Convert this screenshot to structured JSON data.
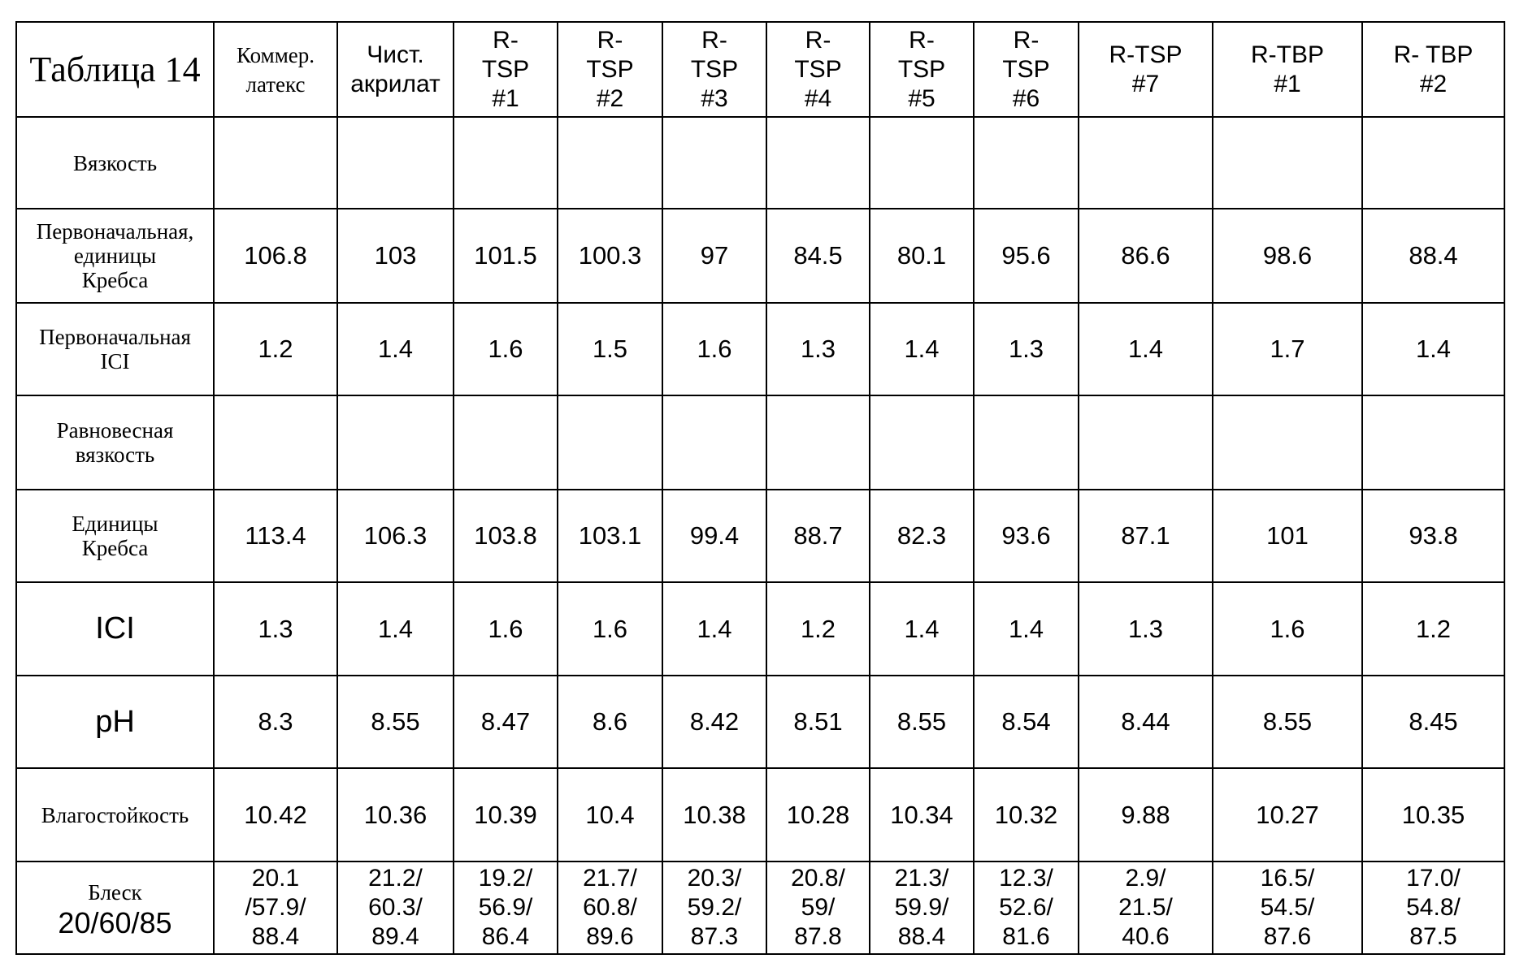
{
  "table": {
    "caption": "Таблица 14",
    "columns": [
      "Коммер.\nлатекс",
      "Чист.\nакрилат",
      "R-\nTSP\n#1",
      "R-\nTSP\n#2",
      "R-\nTSP\n#3",
      "R-\nTSP\n#4",
      "R-\nTSP\n#5",
      "R-\nTSP\n#6",
      "R-TSP\n#7",
      "R-TBP\n#1",
      "R- TBP\n#2"
    ],
    "rows": [
      {
        "label": "Вязкость",
        "values": []
      },
      {
        "label": "Первоначальная,\nединицы\nКребса",
        "values": [
          "106.8",
          "103",
          "101.5",
          "100.3",
          "97",
          "84.5",
          "80.1",
          "95.6",
          "86.6",
          "98.6",
          "88.4"
        ]
      },
      {
        "label": "Первоначальная\nICI",
        "values": [
          "1.2",
          "1.4",
          "1.6",
          "1.5",
          "1.6",
          "1.3",
          "1.4",
          "1.3",
          "1.4",
          "1.7",
          "1.4"
        ]
      },
      {
        "label": "Равновесная\nвязкость",
        "values": []
      },
      {
        "label": "Единицы\nКребса",
        "values": [
          "113.4",
          "106.3",
          "103.8",
          "103.1",
          "99.4",
          "88.7",
          "82.3",
          "93.6",
          "87.1",
          "101",
          "93.8"
        ]
      },
      {
        "label": "ICI",
        "values": [
          "1.3",
          "1.4",
          "1.6",
          "1.6",
          "1.4",
          "1.2",
          "1.4",
          "1.4",
          "1.3",
          "1.6",
          "1.2"
        ]
      },
      {
        "label": "pH",
        "values": [
          "8.3",
          "8.55",
          "8.47",
          "8.6",
          "8.42",
          "8.51",
          "8.55",
          "8.54",
          "8.44",
          "8.55",
          "8.45"
        ]
      },
      {
        "label": "Влагостойкость",
        "values": [
          "10.42",
          "10.36",
          "10.39",
          "10.4",
          "10.38",
          "10.28",
          "10.34",
          "10.32",
          "9.88",
          "10.27",
          "10.35"
        ]
      },
      {
        "label": "Блеск",
        "sublabel": "20/60/85",
        "values": [
          "20.1\n/57.9/\n88.4",
          "21.2/\n60.3/\n89.4",
          "19.2/\n56.9/\n86.4",
          "21.7/\n60.8/\n89.6",
          "20.3/\n59.2/\n87.3",
          "20.8/\n59/\n87.8",
          "21.3/\n59.9/\n88.4",
          "12.3/\n52.6/\n81.6",
          "2.9/\n21.5/\n40.6",
          "16.5/\n54.5/\n87.6",
          "17.0/\n54.8/\n87.5"
        ]
      }
    ]
  }
}
